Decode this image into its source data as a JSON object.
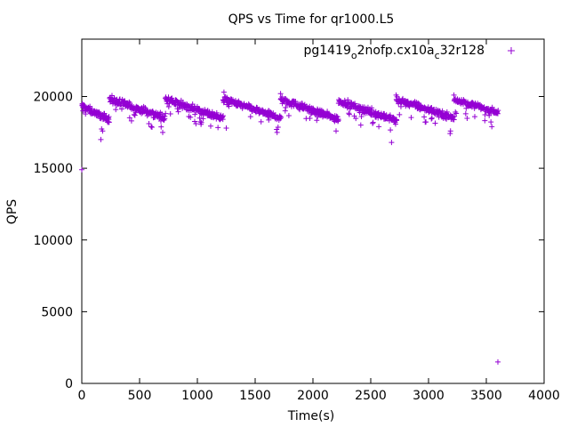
{
  "chart_data": {
    "type": "scatter",
    "title": "QPS vs Time for qr1000.L5",
    "xlabel": "Time(s)",
    "ylabel": "QPS",
    "xlim": [
      0,
      4000
    ],
    "ylim": [
      0,
      24000
    ],
    "xticks": [
      0,
      500,
      1000,
      1500,
      2000,
      2500,
      3000,
      3500,
      4000
    ],
    "yticks": [
      0,
      5000,
      10000,
      15000,
      20000
    ],
    "xtick_labels": [
      "0",
      "500",
      "1000",
      "1500",
      "2000",
      "2500",
      "3000",
      "3500",
      "4000"
    ],
    "ytick_labels": [
      "0",
      "5000",
      "10000",
      "15000",
      "20000"
    ],
    "grid": false,
    "legend_position": "top-right",
    "marker": "+",
    "series": [
      {
        "name_parts": [
          "pg1419",
          "o",
          "2nofp.cx10a",
          "c",
          "32r128"
        ],
        "color": "#9400d3",
        "segments": [
          {
            "t_start": 0,
            "t_end": 240,
            "q_start": 19300,
            "q_end": 18400,
            "spread": 350
          },
          {
            "t_start": 240,
            "t_end": 720,
            "q_start": 19800,
            "q_end": 18500,
            "spread": 350
          },
          {
            "t_start": 720,
            "t_end": 1220,
            "q_start": 19800,
            "q_end": 18500,
            "spread": 350
          },
          {
            "t_start": 1220,
            "t_end": 1720,
            "q_start": 19800,
            "q_end": 18500,
            "spread": 350
          },
          {
            "t_start": 1720,
            "t_end": 2220,
            "q_start": 19800,
            "q_end": 18400,
            "spread": 350
          },
          {
            "t_start": 2220,
            "t_end": 2720,
            "q_start": 19700,
            "q_end": 18300,
            "spread": 350
          },
          {
            "t_start": 2720,
            "t_end": 3220,
            "q_start": 19800,
            "q_end": 18500,
            "spread": 350
          },
          {
            "t_start": 3220,
            "t_end": 3600,
            "q_start": 19800,
            "q_end": 18900,
            "spread": 300
          }
        ],
        "outliers": [
          [
            0,
            14900
          ],
          [
            5,
            19500
          ],
          [
            10,
            19000
          ],
          [
            165,
            17000
          ],
          [
            180,
            17600
          ],
          [
            230,
            18500
          ],
          [
            245,
            19900
          ],
          [
            430,
            18300
          ],
          [
            600,
            17900
          ],
          [
            700,
            17500
          ],
          [
            740,
            19500
          ],
          [
            1020,
            18500
          ],
          [
            1230,
            20300
          ],
          [
            1250,
            17800
          ],
          [
            1460,
            18600
          ],
          [
            1690,
            17500
          ],
          [
            1720,
            20200
          ],
          [
            1760,
            19000
          ],
          [
            2040,
            18600
          ],
          [
            2200,
            17600
          ],
          [
            2230,
            19700
          ],
          [
            2570,
            17900
          ],
          [
            2680,
            16800
          ],
          [
            2720,
            20100
          ],
          [
            2740,
            19500
          ],
          [
            3030,
            18500
          ],
          [
            3190,
            17600
          ],
          [
            3220,
            20100
          ],
          [
            3400,
            18600
          ],
          [
            3600,
            1500
          ]
        ]
      }
    ]
  }
}
